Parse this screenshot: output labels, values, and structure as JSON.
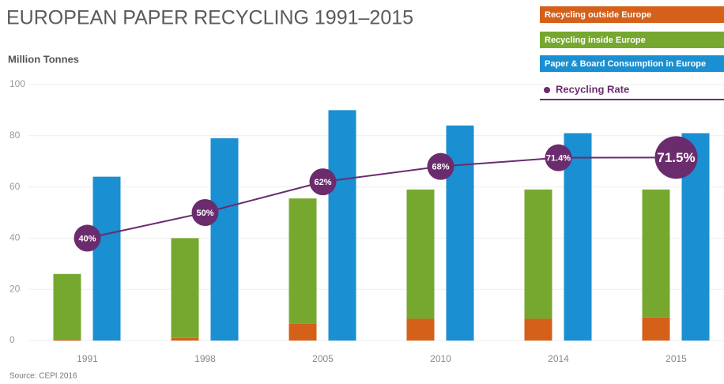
{
  "chart_data": {
    "type": "bar",
    "title": "EUROPEAN PAPER RECYCLING 1991–2015",
    "y_label": "Million Tonnes",
    "source": "Source: CEPI 2016",
    "categories": [
      "1991",
      "1998",
      "2005",
      "2010",
      "2014",
      "2015"
    ],
    "series": [
      {
        "name": "Recycling outside Europe",
        "type": "stacked",
        "color": "#d4601a",
        "values": [
          0.5,
          1,
          6.5,
          8.5,
          8.5,
          9
        ]
      },
      {
        "name": "Recycling inside Europe",
        "type": "stacked",
        "color": "#76a82f",
        "values": [
          25.5,
          39,
          49,
          50.5,
          50.5,
          50
        ]
      },
      {
        "name": "Paper & Board Consumption in Europe",
        "type": "bar",
        "color": "#1a8fd1",
        "values": [
          64,
          79,
          90,
          84,
          81,
          81
        ]
      },
      {
        "name": "Recycling Rate",
        "type": "line",
        "color": "#6b2c6e",
        "values": [
          40,
          50,
          62,
          68,
          71.4,
          71.5
        ],
        "value_labels": [
          "40%",
          "50%",
          "62%",
          "68%",
          "71.4%",
          "71.5%"
        ]
      }
    ],
    "ylim": [
      0,
      100
    ],
    "yticks": [
      0,
      20,
      40,
      60,
      80,
      100
    ],
    "grid": true
  }
}
